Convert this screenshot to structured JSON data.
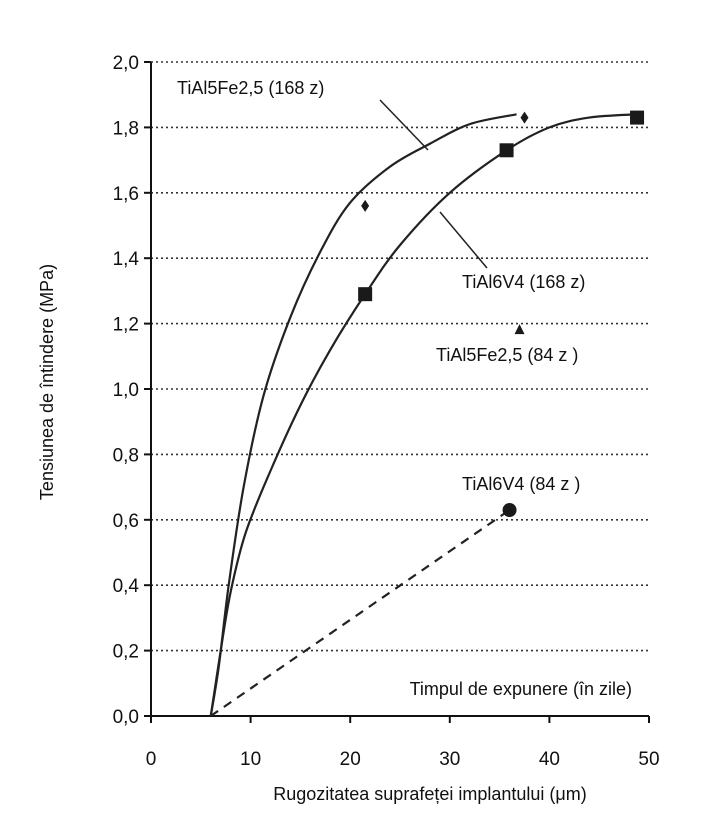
{
  "chart_data": {
    "type": "line",
    "title": "",
    "xlabel": "Rugozitatea suprafeței implantului (μm)",
    "ylabel": "Tensiunea de întindere (MPa)",
    "xlim": [
      0,
      50
    ],
    "ylim": [
      0.0,
      2.0
    ],
    "x_ticks": [
      0,
      10,
      20,
      30,
      40,
      50
    ],
    "y_ticks": [
      "0,0",
      "0,2",
      "0,4",
      "0,6",
      "0,8",
      "1,0",
      "1,2",
      "1,4",
      "1,6",
      "1,8",
      "2,0"
    ],
    "grid": "horizontal dotted",
    "legend_title": "Timpul de expunere (în zile)",
    "series": [
      {
        "name": "TiAl5Fe2,5 (168 z)",
        "marker": "diamond",
        "line": "solid",
        "points": [
          [
            21.5,
            1.56
          ],
          [
            37.5,
            1.83
          ]
        ],
        "curve": [
          [
            6.0,
            0.0
          ],
          [
            6.8,
            0.15
          ],
          [
            7.8,
            0.4
          ],
          [
            9.3,
            0.7
          ],
          [
            11.3,
            0.98
          ],
          [
            14.0,
            1.22
          ],
          [
            17.0,
            1.42
          ],
          [
            20.0,
            1.57
          ],
          [
            24.0,
            1.68
          ],
          [
            28.0,
            1.75
          ],
          [
            32.0,
            1.81
          ],
          [
            36.7,
            1.84
          ]
        ]
      },
      {
        "name": "TiAl6V4 (168 z)",
        "marker": "square",
        "line": "solid",
        "points": [
          [
            21.5,
            1.29
          ],
          [
            35.7,
            1.73
          ],
          [
            48.8,
            1.83
          ]
        ],
        "curve": [
          [
            6.0,
            0.0
          ],
          [
            7.0,
            0.2
          ],
          [
            8.0,
            0.38
          ],
          [
            9.5,
            0.56
          ],
          [
            12.0,
            0.75
          ],
          [
            15.0,
            0.95
          ],
          [
            18.0,
            1.12
          ],
          [
            21.5,
            1.29
          ],
          [
            25.0,
            1.44
          ],
          [
            30.0,
            1.6
          ],
          [
            35.7,
            1.73
          ],
          [
            40.0,
            1.8
          ],
          [
            44.0,
            1.83
          ],
          [
            48.8,
            1.84
          ]
        ]
      },
      {
        "name": "TiAl5Fe2,5 (84 z )",
        "marker": "triangle",
        "line": "none",
        "points": [
          [
            37.0,
            1.18
          ]
        ]
      },
      {
        "name": "TiAl6V4 (84 z )",
        "marker": "circle",
        "line": "dashed",
        "points": [
          [
            36.0,
            0.63
          ]
        ],
        "curve": [
          [
            6.0,
            0.0
          ],
          [
            36.0,
            0.63
          ]
        ]
      }
    ]
  }
}
